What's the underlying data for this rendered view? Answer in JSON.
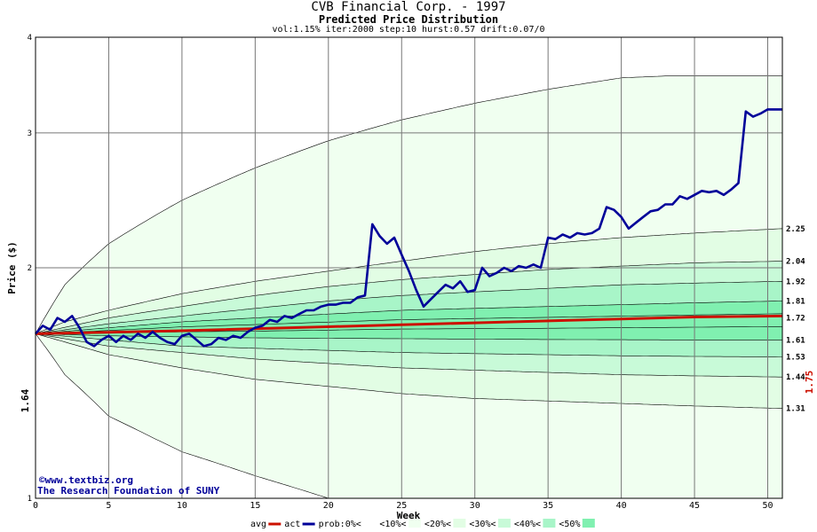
{
  "chart_data": {
    "type": "area",
    "title": "CVB Financial Corp. - 1997",
    "subtitle": "Predicted Price Distribution",
    "params": "vol:1.15% iter:2000 step:10 hurst:0.57 drift:0.07/0",
    "xlabel": "Week",
    "ylabel": "Price ($)",
    "xlim": [
      0,
      51
    ],
    "ylim": [
      1,
      4
    ],
    "y_log": true,
    "x_ticks": [
      0,
      5,
      10,
      15,
      20,
      25,
      30,
      35,
      40,
      45,
      50
    ],
    "y_ticks": [
      1,
      2,
      3,
      4
    ],
    "grid": true,
    "start_price": "1.64",
    "end_price": "1.75",
    "band_labels": [
      "2.25",
      "2.04",
      "1.92",
      "1.81",
      "1.72",
      "1.61",
      "1.53",
      "1.44",
      "1.31"
    ],
    "bands": [
      {
        "name": "<10%",
        "color": "#f0fff0",
        "upper": [
          [
            0,
            1.64
          ],
          [
            2,
            1.9
          ],
          [
            5,
            2.15
          ],
          [
            10,
            2.45
          ],
          [
            15,
            2.7
          ],
          [
            20,
            2.93
          ],
          [
            25,
            3.12
          ],
          [
            30,
            3.28
          ],
          [
            35,
            3.42
          ],
          [
            40,
            3.54
          ],
          [
            43,
            3.56
          ],
          [
            51,
            3.56
          ]
        ],
        "lower": [
          [
            0,
            1.64
          ],
          [
            2,
            1.45
          ],
          [
            5,
            1.28
          ],
          [
            8,
            1.2
          ],
          [
            10,
            1.15
          ],
          [
            15,
            1.07
          ],
          [
            20,
            1.0
          ],
          [
            51,
            1.0
          ]
        ]
      },
      {
        "name": "<20%",
        "color": "#e2fde4",
        "upper": [
          [
            0,
            1.64
          ],
          [
            2,
            1.7
          ],
          [
            5,
            1.76
          ],
          [
            10,
            1.85
          ],
          [
            15,
            1.92
          ],
          [
            20,
            1.98
          ],
          [
            25,
            2.04
          ],
          [
            30,
            2.1
          ],
          [
            35,
            2.15
          ],
          [
            40,
            2.19
          ],
          [
            45,
            2.22
          ],
          [
            51,
            2.25
          ]
        ],
        "lower": [
          [
            0,
            1.64
          ],
          [
            5,
            1.54
          ],
          [
            10,
            1.48
          ],
          [
            15,
            1.43
          ],
          [
            20,
            1.4
          ],
          [
            25,
            1.37
          ],
          [
            30,
            1.35
          ],
          [
            35,
            1.34
          ],
          [
            40,
            1.33
          ],
          [
            45,
            1.32
          ],
          [
            51,
            1.31
          ]
        ]
      },
      {
        "name": "<30%",
        "color": "#c8fad8",
        "upper": [
          [
            0,
            1.64
          ],
          [
            5,
            1.72
          ],
          [
            10,
            1.78
          ],
          [
            15,
            1.84
          ],
          [
            20,
            1.89
          ],
          [
            25,
            1.93
          ],
          [
            30,
            1.96
          ],
          [
            35,
            1.99
          ],
          [
            40,
            2.01
          ],
          [
            45,
            2.03
          ],
          [
            51,
            2.04
          ]
        ],
        "lower": [
          [
            0,
            1.64
          ],
          [
            5,
            1.58
          ],
          [
            10,
            1.55
          ],
          [
            15,
            1.52
          ],
          [
            20,
            1.5
          ],
          [
            25,
            1.48
          ],
          [
            30,
            1.47
          ],
          [
            35,
            1.46
          ],
          [
            40,
            1.45
          ],
          [
            45,
            1.445
          ],
          [
            51,
            1.44
          ]
        ]
      },
      {
        "name": "<40%",
        "color": "#a8f5c8",
        "upper": [
          [
            0,
            1.64
          ],
          [
            5,
            1.69
          ],
          [
            10,
            1.73
          ],
          [
            15,
            1.77
          ],
          [
            20,
            1.81
          ],
          [
            25,
            1.84
          ],
          [
            30,
            1.86
          ],
          [
            35,
            1.88
          ],
          [
            40,
            1.9
          ],
          [
            45,
            1.91
          ],
          [
            51,
            1.92
          ]
        ],
        "lower": [
          [
            0,
            1.64
          ],
          [
            5,
            1.61
          ],
          [
            10,
            1.58
          ],
          [
            15,
            1.57
          ],
          [
            20,
            1.56
          ],
          [
            25,
            1.55
          ],
          [
            30,
            1.545
          ],
          [
            35,
            1.54
          ],
          [
            40,
            1.535
          ],
          [
            45,
            1.532
          ],
          [
            51,
            1.53
          ]
        ]
      },
      {
        "name": "<50%",
        "color": "#80f0b0",
        "upper": [
          [
            0,
            1.64
          ],
          [
            5,
            1.67
          ],
          [
            10,
            1.7
          ],
          [
            15,
            1.72
          ],
          [
            20,
            1.74
          ],
          [
            25,
            1.76
          ],
          [
            30,
            1.77
          ],
          [
            35,
            1.78
          ],
          [
            40,
            1.79
          ],
          [
            45,
            1.8
          ],
          [
            51,
            1.81
          ]
        ],
        "lower": [
          [
            0,
            1.64
          ],
          [
            5,
            1.63
          ],
          [
            10,
            1.625
          ],
          [
            15,
            1.62
          ],
          [
            20,
            1.618
          ],
          [
            25,
            1.616
          ],
          [
            30,
            1.614
          ],
          [
            35,
            1.612
          ],
          [
            40,
            1.611
          ],
          [
            45,
            1.61
          ],
          [
            51,
            1.61
          ]
        ]
      }
    ],
    "series": [
      {
        "name": "avg",
        "color": "#cc1100",
        "points": [
          [
            0,
            1.64
          ],
          [
            10,
            1.655
          ],
          [
            20,
            1.675
          ],
          [
            25,
            1.685
          ],
          [
            30,
            1.695
          ],
          [
            35,
            1.705
          ],
          [
            40,
            1.715
          ],
          [
            45,
            1.725
          ],
          [
            51,
            1.73
          ]
        ]
      },
      {
        "name": "act",
        "color": "#000099",
        "points": [
          [
            0,
            1.64
          ],
          [
            0.5,
            1.68
          ],
          [
            1,
            1.66
          ],
          [
            1.5,
            1.72
          ],
          [
            2,
            1.7
          ],
          [
            2.5,
            1.73
          ],
          [
            3,
            1.67
          ],
          [
            3.5,
            1.6
          ],
          [
            4,
            1.58
          ],
          [
            4.5,
            1.61
          ],
          [
            5,
            1.63
          ],
          [
            5.5,
            1.6
          ],
          [
            6,
            1.63
          ],
          [
            6.5,
            1.61
          ],
          [
            7,
            1.64
          ],
          [
            7.5,
            1.62
          ],
          [
            8,
            1.65
          ],
          [
            8.5,
            1.62
          ],
          [
            9,
            1.6
          ],
          [
            9.5,
            1.59
          ],
          [
            10,
            1.63
          ],
          [
            10.5,
            1.64
          ],
          [
            11,
            1.61
          ],
          [
            11.5,
            1.58
          ],
          [
            12,
            1.59
          ],
          [
            12.5,
            1.62
          ],
          [
            13,
            1.61
          ],
          [
            13.5,
            1.63
          ],
          [
            14,
            1.62
          ],
          [
            14.5,
            1.65
          ],
          [
            15,
            1.67
          ],
          [
            15.5,
            1.68
          ],
          [
            16,
            1.71
          ],
          [
            16.5,
            1.7
          ],
          [
            17,
            1.73
          ],
          [
            17.5,
            1.72
          ],
          [
            18,
            1.74
          ],
          [
            18.5,
            1.76
          ],
          [
            19,
            1.76
          ],
          [
            19.5,
            1.78
          ],
          [
            20,
            1.79
          ],
          [
            20.5,
            1.79
          ],
          [
            21,
            1.8
          ],
          [
            21.5,
            1.8
          ],
          [
            22,
            1.83
          ],
          [
            22.5,
            1.84
          ],
          [
            23,
            2.28
          ],
          [
            23.5,
            2.2
          ],
          [
            24,
            2.15
          ],
          [
            24.5,
            2.19
          ],
          [
            25,
            2.08
          ],
          [
            25.5,
            1.98
          ],
          [
            26,
            1.87
          ],
          [
            26.5,
            1.78
          ],
          [
            27,
            1.82
          ],
          [
            27.5,
            1.86
          ],
          [
            28,
            1.9
          ],
          [
            28.5,
            1.88
          ],
          [
            29,
            1.92
          ],
          [
            29.5,
            1.86
          ],
          [
            30,
            1.87
          ],
          [
            30.5,
            2.0
          ],
          [
            31,
            1.95
          ],
          [
            31.5,
            1.97
          ],
          [
            32,
            2.0
          ],
          [
            32.5,
            1.98
          ],
          [
            33,
            2.01
          ],
          [
            33.5,
            2.0
          ],
          [
            34,
            2.02
          ],
          [
            34.5,
            2.0
          ],
          [
            35,
            2.19
          ],
          [
            35.5,
            2.18
          ],
          [
            36,
            2.21
          ],
          [
            36.5,
            2.19
          ],
          [
            37,
            2.22
          ],
          [
            37.5,
            2.21
          ],
          [
            38,
            2.22
          ],
          [
            38.5,
            2.25
          ],
          [
            39,
            2.4
          ],
          [
            39.5,
            2.38
          ],
          [
            40,
            2.33
          ],
          [
            40.5,
            2.25
          ],
          [
            41,
            2.29
          ],
          [
            41.5,
            2.33
          ],
          [
            42,
            2.37
          ],
          [
            42.5,
            2.38
          ],
          [
            43,
            2.42
          ],
          [
            43.5,
            2.42
          ],
          [
            44,
            2.48
          ],
          [
            44.5,
            2.46
          ],
          [
            45,
            2.49
          ],
          [
            45.5,
            2.52
          ],
          [
            46,
            2.51
          ],
          [
            46.5,
            2.52
          ],
          [
            47,
            2.49
          ],
          [
            47.5,
            2.53
          ],
          [
            48,
            2.58
          ],
          [
            48.5,
            3.2
          ],
          [
            49,
            3.15
          ],
          [
            49.5,
            3.18
          ],
          [
            50,
            3.22
          ],
          [
            50.5,
            3.22
          ],
          [
            51,
            3.22
          ]
        ]
      }
    ],
    "credits": [
      "www.textbiz.org",
      "The Research Foundation of SUNY"
    ],
    "legend": {
      "placement": "bottom",
      "items": [
        {
          "label": "avg",
          "swatch": "#cc1100",
          "kind": "line"
        },
        {
          "label": "act",
          "swatch": "#000099",
          "kind": "line"
        },
        {
          "label": "prob:0%<",
          "swatch": "#ffffff",
          "kind": "box"
        },
        {
          "label": "<10%<",
          "swatch": "#f0fff0",
          "kind": "box"
        },
        {
          "label": "<20%<",
          "swatch": "#e2fde4",
          "kind": "box"
        },
        {
          "label": "<30%<",
          "swatch": "#c8fad8",
          "kind": "box"
        },
        {
          "label": "<40%<",
          "swatch": "#a8f5c8",
          "kind": "box"
        },
        {
          "label": "<50%",
          "swatch": "#80f0b0",
          "kind": "box"
        }
      ]
    }
  }
}
